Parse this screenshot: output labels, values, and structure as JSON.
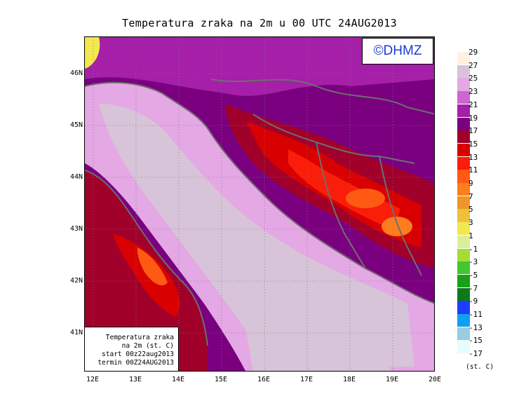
{
  "title": "Temperatura zraka na 2m u 00 UTC 24AUG2013",
  "brand": "©DHMZ",
  "info": {
    "line1": "Temperatura zraka",
    "line2": "na 2m (st. C)",
    "line3": "start 00z22aug2013",
    "line4": "termin 00Z24AUG2013"
  },
  "axes": {
    "lat_labels": [
      "46N",
      "45N",
      "44N",
      "43N",
      "42N",
      "41N"
    ],
    "lon_labels": [
      "12E",
      "13E",
      "14E",
      "15E",
      "16E",
      "17E",
      "18E",
      "19E",
      "20E"
    ],
    "lat_range": [
      40.25,
      46.75
    ],
    "lon_range": [
      11.8,
      20.0
    ]
  },
  "legend": {
    "unit": "(st. C)",
    "labels": [
      "29",
      "27",
      "25",
      "23",
      "21",
      "19",
      "17",
      "15",
      "13",
      "11",
      "9",
      "7",
      "5",
      "3",
      "1",
      "-1",
      "-3",
      "-5",
      "-7",
      "-9",
      "-11",
      "-13",
      "-15",
      "-17"
    ],
    "colors": [
      "#fff1e2",
      "#d8c4d8",
      "#e4a8e4",
      "#cc66d6",
      "#a51fa8",
      "#7a0080",
      "#a0002a",
      "#d80000",
      "#fa1e0a",
      "#ff5a14",
      "#ff7d1e",
      "#f09628",
      "#ecc23c",
      "#f2e850",
      "#dcee9c",
      "#a4dc38",
      "#40c82c",
      "#18a018",
      "#0c7a1c",
      "#1e3cff",
      "#10a0f0",
      "#9ccce0",
      "#e6fcff"
    ]
  },
  "colors": {
    "sea": "#d8c4d8",
    "coast_sea": "#e4a8e4",
    "border": "#6e6e6e"
  }
}
